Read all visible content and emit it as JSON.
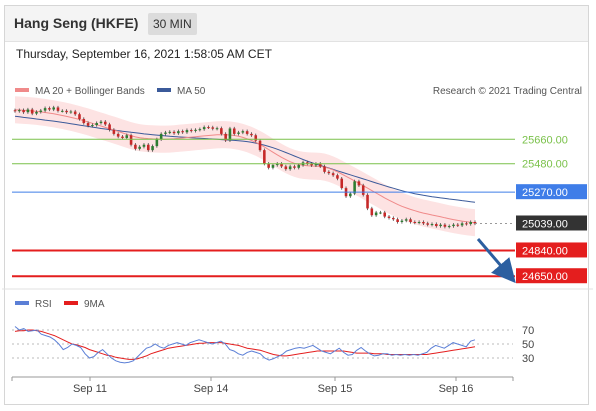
{
  "header": {
    "title": "Hang Seng (HKFE)",
    "timeframe": "30 MIN",
    "timestamp": "Thursday, September 16, 2021 1:58:05 AM CET"
  },
  "legend": {
    "ma20": "MA 20 + Bollinger Bands",
    "ma50": "MA 50",
    "credit": "Research © 2021 Trading Central",
    "rsi": "RSI",
    "rsi_ma": "9MA"
  },
  "colors": {
    "ma20": "#f08a8a",
    "bollinger_fill": "#fde3e3",
    "ma50": "#3b5a9a",
    "candle_up": "#2e7d32",
    "candle_down": "#c62828",
    "resistance_green": "#7ac14a",
    "pivot_blue": "#3f7de8",
    "support_red": "#e41e1e",
    "last_price": "#333333",
    "rsi": "#5b7fd6",
    "rsi_ma": "#e41e1e",
    "arrow": "#2c5fa0"
  },
  "chart_data": [
    {
      "type": "candlestick",
      "price_axis_range": [
        24600,
        25950
      ],
      "levels": [
        {
          "label": "25660.00",
          "value": 25660,
          "kind": "resistance"
        },
        {
          "label": "25480.00",
          "value": 25480,
          "kind": "resistance"
        },
        {
          "label": "25270.00",
          "value": 25270,
          "kind": "pivot"
        },
        {
          "label": "25039.00",
          "value": 25039,
          "kind": "last"
        },
        {
          "label": "24840.00",
          "value": 24840,
          "kind": "support"
        },
        {
          "label": "24650.00",
          "value": 24650,
          "kind": "support"
        }
      ],
      "close": [
        25868,
        25875,
        25860,
        25880,
        25850,
        25862,
        25872,
        25890,
        25880,
        25895,
        25870,
        25870,
        25860,
        25865,
        25845,
        25810,
        25780,
        25760,
        25765,
        25780,
        25790,
        25770,
        25730,
        25700,
        25680,
        25670,
        25690,
        25620,
        25590,
        25605,
        25620,
        25580,
        25610,
        25660,
        25700,
        25710,
        25715,
        25705,
        25720,
        25712,
        25728,
        25722,
        25730,
        25735,
        25750,
        25748,
        25738,
        25742,
        25700,
        25652,
        25740,
        25700,
        25710,
        25720,
        25700,
        25690,
        25650,
        25580,
        25480,
        25450,
        25470,
        25480,
        25460,
        25440,
        25460,
        25450,
        25470,
        25490,
        25480,
        25468,
        25480,
        25460,
        25420,
        25410,
        25395,
        25370,
        25300,
        25240,
        25260,
        25350,
        25320,
        25250,
        25150,
        25100,
        25120,
        25120,
        25090,
        25080,
        25070,
        25050,
        25060,
        25070,
        25050,
        25045,
        25050,
        25040,
        25030,
        25035,
        25020,
        25030,
        25015,
        25020,
        25030,
        25025,
        25040,
        25035,
        25050,
        25039
      ],
      "ma20": [
        25878,
        25876,
        25874,
        25872,
        25869,
        25866,
        25862,
        25858,
        25853,
        25848,
        25842,
        25836,
        25829,
        25822,
        25814,
        25806,
        25797,
        25788,
        25778,
        25768,
        25758,
        25748,
        25738,
        25728,
        25718,
        25707,
        25697,
        25687,
        25678,
        25672,
        25668,
        25665,
        25663,
        25662,
        25661,
        25661,
        25662,
        25664,
        25667,
        25670,
        25673,
        25676,
        25679,
        25682,
        25685,
        25688,
        25691,
        25693,
        25694,
        25694,
        25692,
        25688,
        25682,
        25674,
        25664,
        25652,
        25638,
        25622,
        25604,
        25585,
        25565,
        25546,
        25527,
        25510,
        25495,
        25483,
        25474,
        25468,
        25465,
        25463,
        25462,
        25460,
        25455,
        25446,
        25434,
        25420,
        25404,
        25387,
        25370,
        25353,
        25336,
        25318,
        25300,
        25282,
        25264,
        25246,
        25228,
        25211,
        25195,
        25180,
        25166,
        25154,
        25143,
        25133,
        25124,
        25116,
        25109,
        25102,
        25095,
        25088,
        25081,
        25074,
        25068,
        25062,
        25057,
        25052,
        25048,
        25045
      ],
      "ma50": [
        25830,
        25826,
        25822,
        25818,
        25814,
        25810,
        25806,
        25802,
        25798,
        25794,
        25790,
        25785,
        25780,
        25775,
        25770,
        25765,
        25760,
        25755,
        25750,
        25745,
        25740,
        25736,
        25732,
        25728,
        25724,
        25720,
        25716,
        25712,
        25708,
        25704,
        25700,
        25697,
        25694,
        25691,
        25688,
        25685,
        25682,
        25680,
        25678,
        25676,
        25674,
        25672,
        25670,
        25668,
        25666,
        25664,
        25662,
        25660,
        25658,
        25656,
        25654,
        25652,
        25650,
        25647,
        25643,
        25638,
        25632,
        25625,
        25617,
        25608,
        25598,
        25587,
        25575,
        25563,
        25550,
        25537,
        25524,
        25511,
        25499,
        25488,
        25478,
        25468,
        25458,
        25448,
        25438,
        25428,
        25418,
        25408,
        25398,
        25388,
        25378,
        25368,
        25358,
        25348,
        25338,
        25328,
        25318,
        25308,
        25299,
        25290,
        25281,
        25273,
        25266,
        25259,
        25253,
        25247,
        25242,
        25237,
        25232,
        25228,
        25224,
        25220,
        25216,
        25212,
        25208,
        25204,
        25200,
        25196
      ]
    },
    {
      "type": "line",
      "name": "RSI",
      "y_ticks": [
        70,
        50,
        30
      ],
      "ylim": [
        10,
        90
      ],
      "x_ticks": [
        "Sep 11",
        "Sep 14",
        "Sep 15",
        "Sep 16"
      ],
      "rsi": [
        75,
        70,
        72,
        68,
        69,
        70,
        64,
        62,
        60,
        56,
        50,
        42,
        45,
        50,
        48,
        45,
        36,
        30,
        32,
        38,
        42,
        36,
        30,
        26,
        24,
        23,
        24,
        26,
        32,
        38,
        44,
        46,
        50,
        46,
        44,
        48,
        50,
        52,
        50,
        48,
        52,
        54,
        56,
        54,
        52,
        50,
        52,
        54,
        50,
        42,
        40,
        36,
        34,
        38,
        40,
        38,
        36,
        30,
        27,
        29,
        32,
        35,
        40,
        42,
        44,
        45,
        44,
        46,
        48,
        44,
        40,
        38,
        36,
        40,
        44,
        38,
        34,
        35,
        41,
        45,
        40,
        36,
        33,
        34,
        36,
        36,
        34,
        35,
        34,
        35,
        34,
        35,
        34,
        36,
        38,
        44,
        48,
        46,
        44,
        48,
        52,
        50,
        48,
        46,
        54,
        56
      ],
      "rsi_ma": [
        68,
        69,
        69,
        70,
        70,
        69,
        68,
        66,
        64,
        62,
        59,
        56,
        53,
        50,
        49,
        47,
        45,
        42,
        40,
        38,
        36,
        34,
        33,
        31,
        30,
        29,
        28,
        28,
        29,
        31,
        33,
        36,
        38,
        40,
        42,
        44,
        45,
        46,
        47,
        48,
        49,
        50,
        51,
        51,
        52,
        52,
        52,
        52,
        51,
        50,
        49,
        48,
        46,
        44,
        43,
        42,
        41,
        39,
        37,
        35,
        34,
        33,
        33,
        34,
        35,
        36,
        37,
        38,
        39,
        40,
        40,
        40,
        40,
        40,
        40,
        40,
        39,
        38,
        37,
        37,
        37,
        37,
        36,
        36,
        36,
        35,
        35,
        35,
        35,
        35,
        35,
        35,
        35,
        35,
        35,
        36,
        37,
        38,
        39,
        40,
        41,
        42,
        43,
        44,
        45,
        46
      ]
    }
  ]
}
